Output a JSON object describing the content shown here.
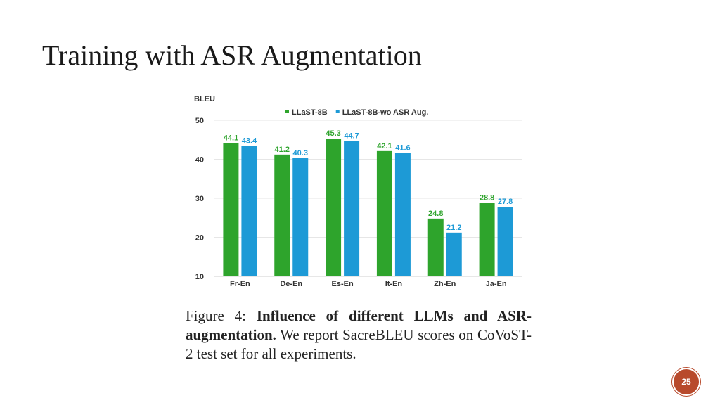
{
  "slide": {
    "title": "Training with ASR Augmentation",
    "page_number": "25"
  },
  "caption": {
    "label": "Figure 4:",
    "bold": "Influence of different LLMs and ASR-augmentation.",
    "text": "We report SacreBLEU scores on CoVoST-2 test set for all experiments."
  },
  "colors": {
    "green": "#2ea42c",
    "blue": "#1d9ad6",
    "grid": "#e6e6e6",
    "badge": "#b84a2c"
  },
  "chart_data": {
    "type": "bar",
    "title": "",
    "ylabel": "BLEU",
    "xlabel": "",
    "ylim": [
      10,
      50
    ],
    "yticks": [
      10,
      20,
      30,
      40,
      50
    ],
    "grid": true,
    "legend_position": "top",
    "categories": [
      "Fr-En",
      "De-En",
      "Es-En",
      "It-En",
      "Zh-En",
      "Ja-En"
    ],
    "series": [
      {
        "name": "LLaST-8B",
        "color": "#2ea42c",
        "values": [
          44.1,
          41.2,
          45.3,
          42.1,
          24.8,
          28.8
        ]
      },
      {
        "name": "LLaST-8B-wo ASR Aug.",
        "color": "#1d9ad6",
        "values": [
          43.4,
          40.3,
          44.7,
          41.6,
          21.2,
          27.8
        ]
      }
    ]
  }
}
